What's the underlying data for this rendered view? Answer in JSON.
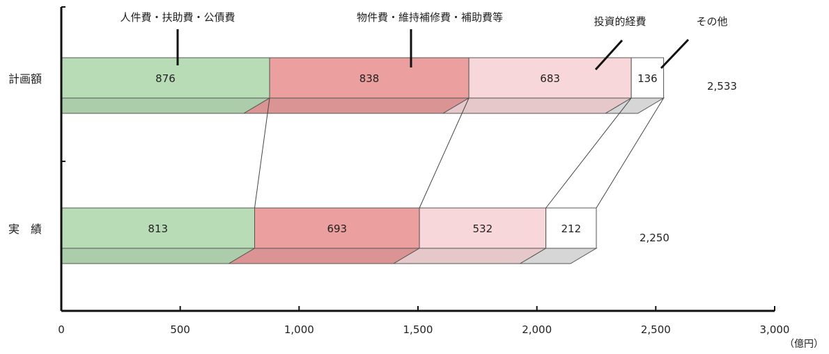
{
  "chart_data": {
    "type": "bar",
    "orientation": "horizontal",
    "stacked": true,
    "categories": [
      "計画額",
      "実　績"
    ],
    "series": [
      {
        "name": "人件費・扶助費・公債費",
        "values": [
          876,
          813
        ],
        "color": "#b8dcb6"
      },
      {
        "name": "物件費・維持補修費・補助費等",
        "values": [
          838,
          693
        ],
        "color": "#eb9f9f"
      },
      {
        "name": "投資的経費",
        "values": [
          683,
          532
        ],
        "color": "#f7d7d9"
      },
      {
        "name": "その他",
        "values": [
          136,
          212
        ],
        "color": "#ffffff"
      }
    ],
    "totals": [
      "2,533",
      "2,250"
    ],
    "x_ticks": [
      "0",
      "500",
      "1,000",
      "1,500",
      "2,000",
      "2,500",
      "3,000"
    ],
    "x_tick_values": [
      0,
      500,
      1000,
      1500,
      2000,
      2500,
      3000
    ],
    "xlim": [
      0,
      3000
    ],
    "unit": "（億円）",
    "grid": false,
    "legend_placement": "top (leader lines to segments)"
  }
}
